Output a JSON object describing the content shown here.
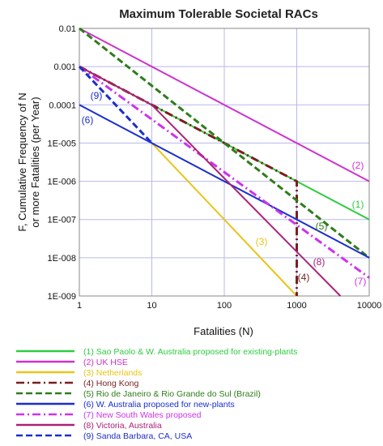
{
  "chart_data": {
    "type": "line",
    "title": "Maximum Tolerable Societal RACs",
    "xlabel": "Fatalities (N)",
    "ylabel": "F, Cumulative Frequency of N or more Fatalities (per Year)",
    "xscale": "log",
    "yscale": "log",
    "xlim": [
      1,
      10000
    ],
    "ylim": [
      1e-09,
      0.01
    ],
    "x_ticks": [
      "1",
      "10",
      "100",
      "1000",
      "10000"
    ],
    "y_ticks": [
      "0.01",
      "0.001",
      "0.0001",
      "1E-005",
      "1E-006",
      "1E-007",
      "1E-008",
      "1E-009"
    ],
    "grid": true,
    "legend_position": "below",
    "series": [
      {
        "name": "(1) Sao Paolo & W. Australia proposed for existing-plants",
        "marker": "(1)",
        "color": "#2ecc40",
        "dash": "solid",
        "x": [
          1,
          10,
          100,
          1000,
          10000
        ],
        "y": [
          0.001,
          0.0001,
          1e-05,
          1e-06,
          1e-07
        ]
      },
      {
        "name": "(2) UK HSE",
        "marker": "(2)",
        "color": "#cc33cc",
        "dash": "solid",
        "x": [
          1,
          10000
        ],
        "y": [
          0.01,
          1e-06
        ]
      },
      {
        "name": "(3) Netherlands",
        "marker": "(3)",
        "color": "#e8c51a",
        "dash": "solid",
        "x": [
          10,
          1000
        ],
        "y": [
          1e-05,
          1e-09
        ]
      },
      {
        "name": "(4) Hong Kong",
        "marker": "(4)",
        "color": "#7a1f1f",
        "dash": "dashdot",
        "x": [
          1,
          1000,
          1000
        ],
        "y": [
          0.001,
          1e-06,
          1e-09
        ]
      },
      {
        "name": "(5) Rio de Janeiro & Rio Grande do Sul (Brazil)",
        "marker": "(5)",
        "color": "#2e7d1a",
        "dash": "dashed",
        "x": [
          1,
          10000
        ],
        "y": [
          0.01,
          1e-08
        ]
      },
      {
        "name": "(6) W. Australia proposed for new-plants",
        "marker": "(6)",
        "color": "#1a2ecc",
        "dash": "solid",
        "x": [
          1,
          10000
        ],
        "y": [
          0.0001,
          1e-08
        ]
      },
      {
        "name": "(7) New South Wales proposed",
        "marker": "(7)",
        "color": "#cc33ee",
        "dash": "dashdot",
        "x": [
          1,
          10000
        ],
        "y": [
          0.001,
          3e-09
        ]
      },
      {
        "name": "(8) Victoria, Australia",
        "marker": "(8)",
        "color": "#aa2277",
        "dash": "solid",
        "x": [
          1,
          10,
          4000
        ],
        "y": [
          0.001,
          0.0001,
          1e-09
        ]
      },
      {
        "name": "(9) Sanda Barbara, CA, USA",
        "marker": "(9)",
        "color": "#1a2ecc",
        "dash": "dashed",
        "x": [
          1,
          10
        ],
        "y": [
          0.001,
          1e-05
        ]
      }
    ]
  }
}
